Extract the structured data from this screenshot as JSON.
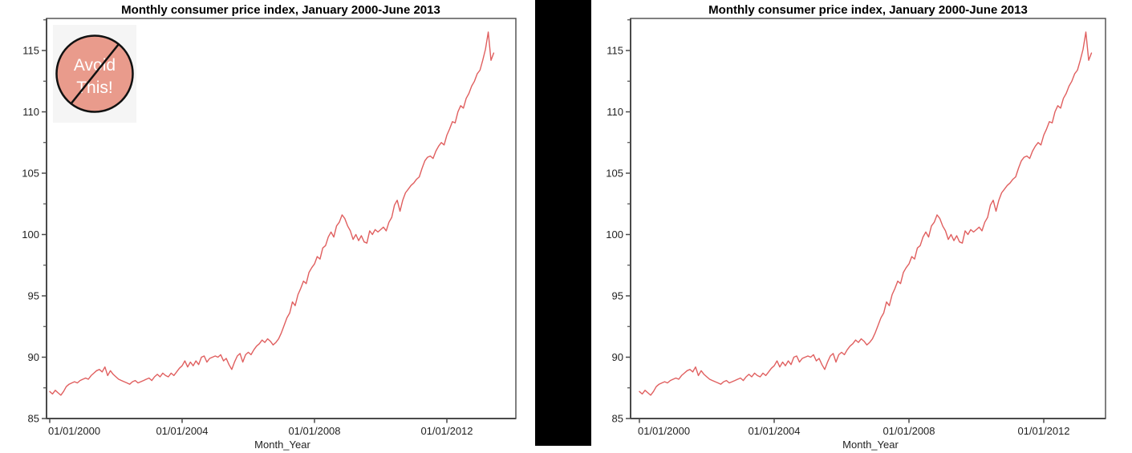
{
  "charts": {
    "left": {
      "title": "Monthly consumer price index, January 2000-June 2013"
    },
    "right": {
      "title": "Monthly consumer price index, January 2000-June 2013"
    }
  },
  "badge": {
    "line1": "Avoid",
    "line2": "This!"
  },
  "colors": {
    "line": "#e05f5f",
    "badge_fill": "#e99b8c",
    "badge_text": "#ffffff",
    "badge_bg": "#f5f5f5",
    "axis": "#4a4a4a",
    "tick_label": "#1f1f1f",
    "title": "#000000",
    "divider": "#000000"
  },
  "chart_data": {
    "type": "line",
    "title": "Monthly consumer price index, January 2000-June 2013",
    "xlabel": "Month_Year",
    "ylabel": "",
    "x_tick_labels": [
      "01/01/2000",
      "01/01/2004",
      "01/01/2008",
      "01/01/2012"
    ],
    "y_tick_labels": [
      85,
      90,
      95,
      100,
      105,
      110,
      115
    ],
    "y_minor_step": 2.5,
    "ylim": [
      85,
      117.5
    ],
    "x_start": "2000-01",
    "x_end": "2013-06",
    "grid": false,
    "legend": "none",
    "series": [
      {
        "name": "Monthly consumer price index",
        "x_unit": "month",
        "values": [
          87.2,
          87.0,
          87.3,
          87.1,
          86.9,
          87.2,
          87.6,
          87.8,
          87.9,
          88.0,
          87.9,
          88.1,
          88.2,
          88.3,
          88.2,
          88.5,
          88.7,
          88.9,
          89.0,
          88.8,
          89.2,
          88.5,
          88.9,
          88.6,
          88.4,
          88.2,
          88.1,
          88.0,
          87.9,
          87.8,
          88.0,
          88.1,
          87.9,
          88.0,
          88.1,
          88.2,
          88.3,
          88.1,
          88.4,
          88.6,
          88.4,
          88.7,
          88.5,
          88.4,
          88.7,
          88.5,
          88.8,
          89.1,
          89.3,
          89.7,
          89.2,
          89.6,
          89.3,
          89.7,
          89.4,
          90.0,
          90.1,
          89.6,
          89.9,
          90.0,
          90.1,
          90.0,
          90.2,
          89.7,
          89.9,
          89.4,
          89.0,
          89.6,
          90.1,
          90.3,
          89.6,
          90.2,
          90.4,
          90.2,
          90.6,
          90.9,
          91.1,
          91.4,
          91.2,
          91.5,
          91.3,
          91.0,
          91.2,
          91.5,
          92.0,
          92.6,
          93.2,
          93.6,
          94.5,
          94.2,
          95.1,
          95.6,
          96.2,
          96.0,
          96.9,
          97.3,
          97.6,
          98.2,
          98.0,
          98.9,
          99.1,
          99.8,
          100.2,
          99.8,
          100.7,
          101.0,
          101.6,
          101.3,
          100.7,
          100.3,
          99.6,
          100.0,
          99.5,
          99.9,
          99.4,
          99.3,
          100.3,
          100.0,
          100.4,
          100.2,
          100.4,
          100.6,
          100.3,
          101.0,
          101.4,
          102.4,
          102.8,
          101.9,
          102.8,
          103.4,
          103.7,
          104.0,
          104.2,
          104.5,
          104.7,
          105.4,
          106.0,
          106.3,
          106.4,
          106.2,
          106.8,
          107.2,
          107.5,
          107.3,
          108.1,
          108.6,
          109.2,
          109.1,
          110.0,
          110.5,
          110.3,
          111.1,
          111.5,
          112.1,
          112.5,
          113.1,
          113.4,
          114.2,
          115.1,
          116.5,
          114.2,
          114.8
        ]
      }
    ]
  }
}
